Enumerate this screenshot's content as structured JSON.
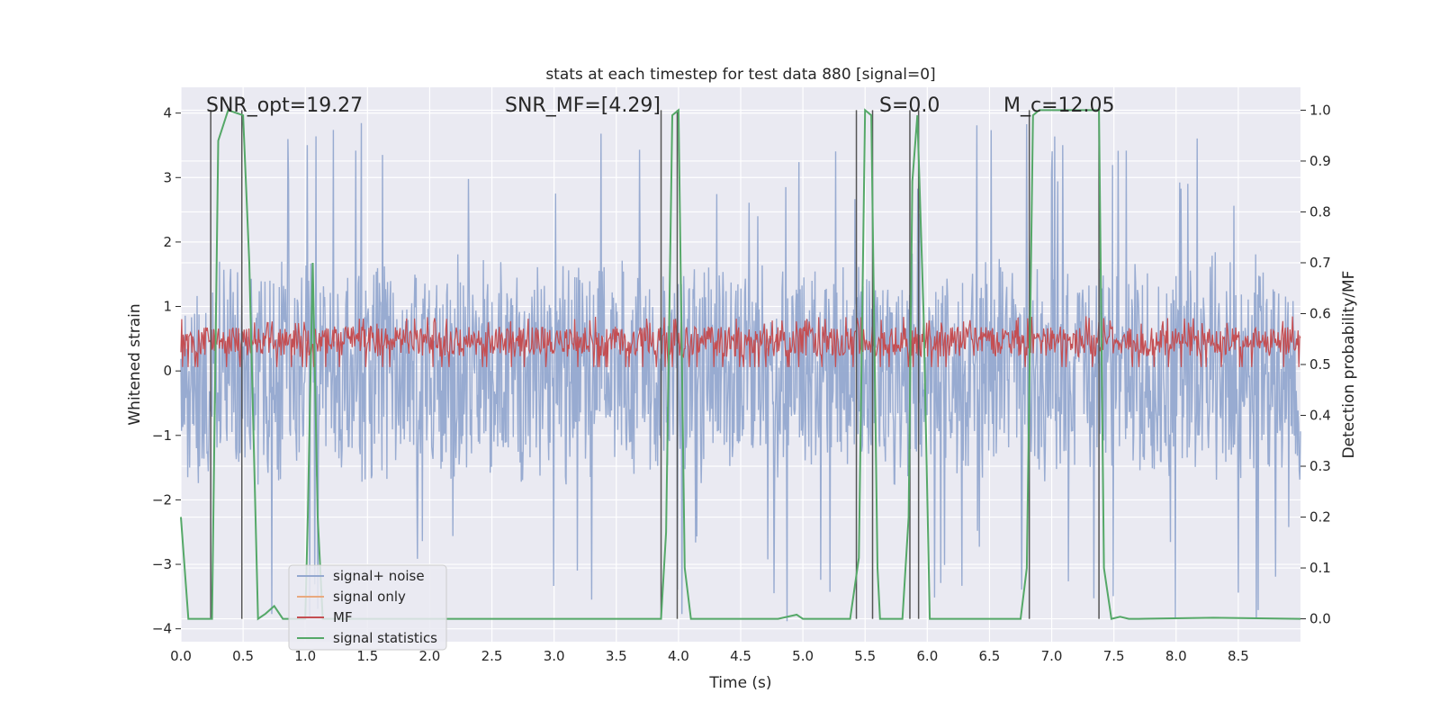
{
  "chart_data": {
    "type": "line",
    "title": "stats at each timestep for test data 880 [signal=0]",
    "xlabel": "Time (s)",
    "ylabel": "Whitened strain",
    "y2label": "Detection probability/MF",
    "xlim": [
      0.0,
      9.0
    ],
    "ylim": [
      -4.2,
      4.4
    ],
    "y2lim": [
      -0.045,
      1.045
    ],
    "xticks": [
      0.0,
      0.5,
      1.0,
      1.5,
      2.0,
      2.5,
      3.0,
      3.5,
      4.0,
      4.5,
      5.0,
      5.5,
      6.0,
      6.5,
      7.0,
      7.5,
      8.0,
      8.5
    ],
    "xtick_labels": [
      "0.0",
      "0.5",
      "1.0",
      "1.5",
      "2.0",
      "2.5",
      "3.0",
      "3.5",
      "4.0",
      "4.5",
      "5.0",
      "5.5",
      "6.0",
      "6.5",
      "7.0",
      "7.5",
      "8.0",
      "8.5"
    ],
    "yticks": [
      4,
      3,
      2,
      1,
      0,
      -1,
      -2,
      -3,
      -4
    ],
    "ytick_labels": [
      "4",
      "3",
      "2",
      "1",
      "0",
      "−1",
      "−2",
      "−3",
      "−4"
    ],
    "y2ticks": [
      1.0,
      0.9,
      0.8,
      0.7,
      0.6,
      0.5,
      0.4,
      0.3,
      0.2,
      0.1,
      0.0
    ],
    "y2tick_labels": [
      "1.0",
      "0.9",
      "0.8",
      "0.7",
      "0.6",
      "0.5",
      "0.4",
      "0.3",
      "0.2",
      "0.1",
      "0.0"
    ],
    "annotations": [
      {
        "label": "SNR_opt=19.27",
        "x": 0.2
      },
      {
        "label": "SNR_MF=[4.29]",
        "x": 2.6
      },
      {
        "label": "S=0.0",
        "x": 5.6
      },
      {
        "label": "M_c=12.05",
        "x": 6.6
      }
    ],
    "legend": {
      "placement": "lower-left",
      "entries": [
        {
          "label": "signal+ noise",
          "color": "#94a8cf"
        },
        {
          "label": "signal only",
          "color": "#e9a97f"
        },
        {
          "label": "MF",
          "color": "#c44e52"
        },
        {
          "label": "signal statistics",
          "color": "#55a868"
        }
      ]
    },
    "series": [
      {
        "name": "signal+ noise",
        "color": "#94a8cf",
        "axis": "left",
        "description": "whitened strain noise, roughly -2.5 to +2.5 with spikes to about +/-4",
        "envelope": {
          "base": 1.9,
          "spike": 3.9
        }
      },
      {
        "name": "signal only",
        "color": "#e9a97f",
        "axis": "left",
        "values": []
      },
      {
        "name": "MF",
        "color": "#c44e52",
        "axis": "right",
        "description": "matched filter output, roughly 0.50 to 0.58",
        "range": [
          0.495,
          0.595
        ]
      },
      {
        "name": "signal statistics",
        "color": "#55a868",
        "axis": "right",
        "x": [
          0.0,
          0.06,
          0.24,
          0.25,
          0.3,
          0.38,
          0.5,
          0.55,
          0.62,
          0.68,
          0.75,
          0.82,
          1.0,
          1.02,
          1.06,
          1.1,
          1.14,
          3.86,
          3.9,
          3.95,
          4.0,
          4.05,
          4.1,
          4.15,
          4.8,
          4.95,
          5.0,
          5.05,
          5.38,
          5.45,
          5.5,
          5.55,
          5.6,
          5.62,
          5.8,
          5.85,
          5.88,
          5.92,
          5.97,
          6.02,
          6.07,
          6.75,
          6.8,
          6.85,
          6.9,
          7.38,
          7.42,
          7.48,
          7.55,
          7.62,
          7.7,
          8.3,
          9.0
        ],
        "y": [
          0.2,
          0.0,
          0.0,
          0.0,
          0.94,
          1.0,
          0.99,
          0.7,
          0.0,
          0.01,
          0.025,
          0.0,
          0.0,
          0.2,
          0.7,
          0.2,
          0.0,
          0.0,
          0.17,
          0.99,
          1.0,
          0.1,
          0.0,
          0.0,
          0.0,
          0.008,
          0.0,
          0.0,
          0.0,
          0.12,
          1.0,
          0.99,
          0.1,
          0.0,
          0.0,
          0.2,
          0.86,
          0.99,
          0.6,
          0.0,
          0.0,
          0.0,
          0.1,
          0.99,
          1.0,
          1.0,
          0.1,
          0.0,
          0.004,
          0.0,
          0.0,
          0.002,
          0.0
        ]
      }
    ],
    "vertical_markers_x": [
      0.24,
      0.49,
      3.86,
      3.99,
      5.43,
      5.56,
      5.86,
      5.93,
      6.82,
      7.38
    ]
  }
}
